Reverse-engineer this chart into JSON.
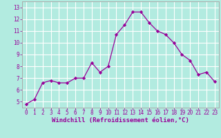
{
  "x": [
    0,
    1,
    2,
    3,
    4,
    5,
    6,
    7,
    8,
    9,
    10,
    11,
    12,
    13,
    14,
    15,
    16,
    17,
    18,
    19,
    20,
    21,
    22,
    23
  ],
  "y": [
    4.8,
    5.2,
    6.6,
    6.8,
    6.6,
    6.6,
    7.0,
    7.0,
    8.3,
    7.5,
    8.0,
    10.7,
    11.5,
    12.6,
    12.6,
    11.7,
    11.0,
    10.7,
    10.0,
    9.0,
    8.5,
    7.3,
    7.5,
    6.7
  ],
  "line_color": "#990099",
  "marker": "D",
  "marker_size": 2.2,
  "bg_color": "#b2ebe0",
  "grid_color": "#ffffff",
  "xlabel": "Windchill (Refroidissement éolien,°C)",
  "xlim": [
    -0.5,
    23.5
  ],
  "ylim": [
    4.5,
    13.5
  ],
  "yticks": [
    5,
    6,
    7,
    8,
    9,
    10,
    11,
    12,
    13
  ],
  "xticks": [
    0,
    1,
    2,
    3,
    4,
    5,
    6,
    7,
    8,
    9,
    10,
    11,
    12,
    13,
    14,
    15,
    16,
    17,
    18,
    19,
    20,
    21,
    22,
    23
  ],
  "tick_color": "#990099",
  "label_color": "#990099",
  "tick_fontsize": 5.5,
  "xlabel_fontsize": 6.5,
  "border_color": "#990099",
  "spine_color": "#aaaaaa"
}
